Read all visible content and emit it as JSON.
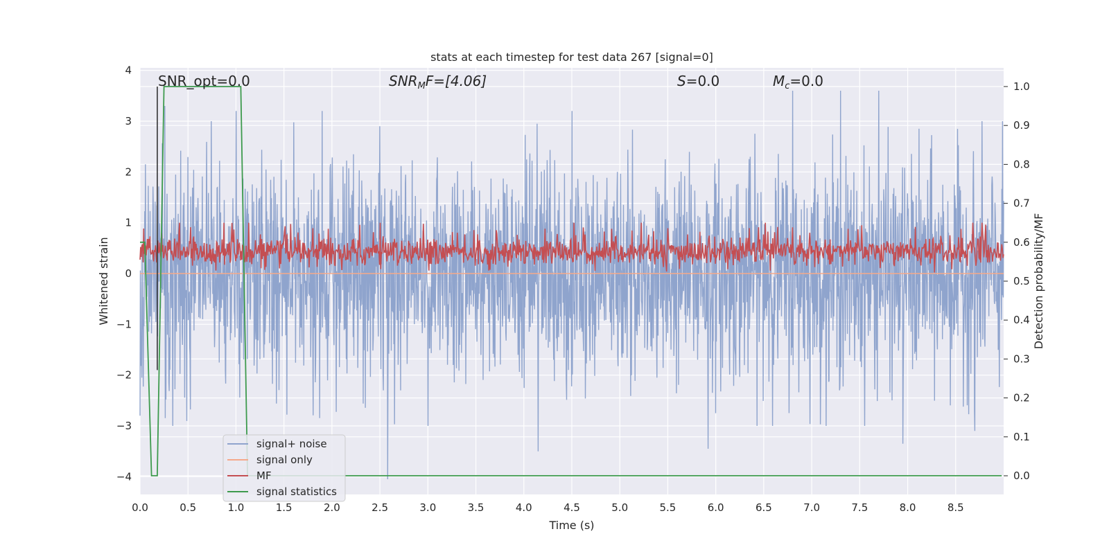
{
  "chart_data": {
    "type": "line",
    "title": "stats at each timestep for test data 267 [signal=0]",
    "xlabel": "Time (s)",
    "ylabel_left": "Whitened strain",
    "ylabel_right": "Detection probability/MF",
    "xlim": [
      0.0,
      9.0
    ],
    "ylim_left": [
      -4.35,
      4.05
    ],
    "ylim_right": [
      -0.048,
      1.048
    ],
    "xticks": [
      "0.0",
      "0.5",
      "1.0",
      "1.5",
      "2.0",
      "2.5",
      "3.0",
      "3.5",
      "4.0",
      "4.5",
      "5.0",
      "5.5",
      "6.0",
      "6.5",
      "7.0",
      "7.5",
      "8.0",
      "8.5"
    ],
    "yticks_left": [
      "4",
      "3",
      "2",
      "1",
      "0",
      "−1",
      "−2",
      "−3",
      "−4"
    ],
    "yticks_right": [
      "1.0",
      "0.9",
      "0.8",
      "0.7",
      "0.6",
      "0.5",
      "0.4",
      "0.3",
      "0.2",
      "0.1",
      "0.0"
    ],
    "grid": true,
    "legend_position": "lower-left",
    "annotations": {
      "snr_opt": "SNR_opt=0.0",
      "snr_mf_sym": "SNR",
      "snr_mf_sub": "M",
      "snr_mf_rest": "F=[4.06]",
      "s_sym": "S",
      "s_rest": "=0.0",
      "mc_sym": "M",
      "mc_sub": "c",
      "mc_rest": "=0.0"
    },
    "series": [
      {
        "name": "signal+ noise",
        "axis": "left",
        "color": "#8fa4cd",
        "description_of_values": "whitened noise, roughly within [-3.6, 3.6]",
        "peak_highs": [
          [
            0.0,
            3.0
          ],
          [
            0.26,
            3.3
          ],
          [
            1.0,
            3.2
          ],
          [
            1.9,
            3.2
          ],
          [
            2.5,
            2.9
          ],
          [
            4.5,
            3.2
          ],
          [
            6.8,
            3.6
          ],
          [
            7.3,
            3.6
          ],
          [
            7.7,
            3.6
          ]
        ],
        "peak_lows": [
          [
            0.0,
            -2.8
          ],
          [
            2.58,
            -4.05
          ],
          [
            3.0,
            -3.0
          ],
          [
            4.15,
            -3.5
          ],
          [
            5.92,
            -3.45
          ],
          [
            7.95,
            -3.35
          ],
          [
            8.7,
            -3.1
          ]
        ]
      },
      {
        "name": "signal only",
        "axis": "left",
        "color": "#f5a98a",
        "values": "flat at 0"
      },
      {
        "name": "MF",
        "axis": "right",
        "color": "#c44e52",
        "range": [
          0.52,
          0.65
        ]
      },
      {
        "name": "signal statistics",
        "axis": "right",
        "color": "#3d9a4d",
        "points": [
          [
            0.0,
            0.6
          ],
          [
            0.05,
            0.6
          ],
          [
            0.12,
            0.0
          ],
          [
            0.18,
            0.0
          ],
          [
            0.25,
            1.0
          ],
          [
            1.05,
            1.0
          ],
          [
            1.12,
            0.0
          ],
          [
            8.98,
            0.0
          ]
        ]
      }
    ],
    "vertical_marker": {
      "x": 0.18,
      "color": "#333333"
    }
  },
  "colors": {
    "plot_background": "#eaeaf2",
    "grid": "#ffffff",
    "noise": "#8fa4cd",
    "signal_only": "#f5a98a",
    "mf": "#c44e52",
    "statistics": "#3d9a4d"
  }
}
